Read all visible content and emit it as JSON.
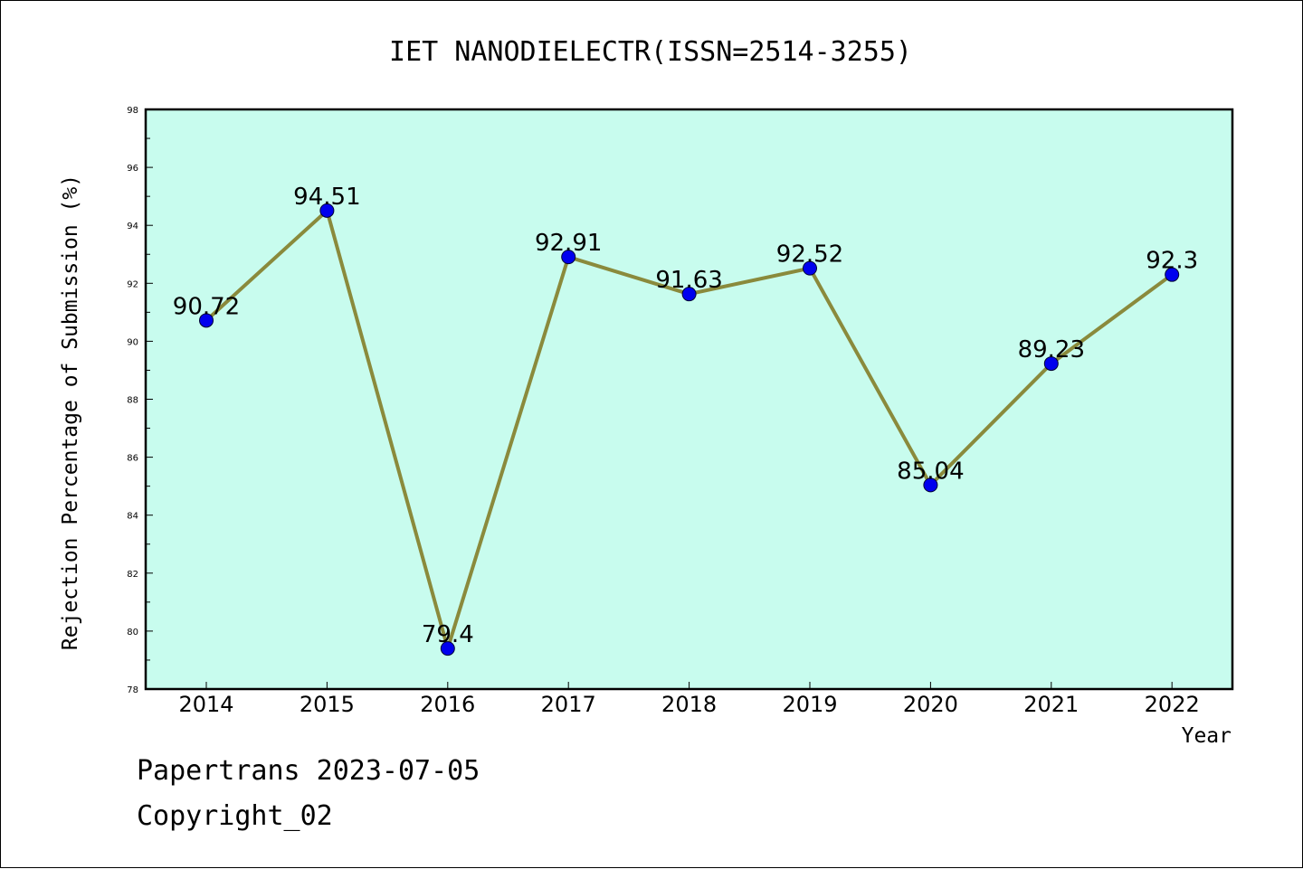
{
  "chart_data": {
    "type": "line",
    "title": "IET NANODIELECTR(ISSN=2514-3255)",
    "xlabel": "Year",
    "ylabel": "Rejection Percentage of Submission (%)",
    "categories": [
      "2014",
      "2015",
      "2016",
      "2017",
      "2018",
      "2019",
      "2020",
      "2021",
      "2022"
    ],
    "values": [
      90.72,
      94.51,
      79.4,
      92.91,
      91.63,
      92.52,
      85.04,
      89.23,
      92.3
    ],
    "data_labels": [
      "90.72",
      "94.51",
      "79.4",
      "92.91",
      "91.63",
      "92.52",
      "85.04",
      "89.23",
      "92.3"
    ],
    "ylim": [
      78,
      98
    ],
    "yticks": [
      "78",
      "80",
      "82",
      "84",
      "86",
      "88",
      "90",
      "92",
      "94",
      "96",
      "98"
    ],
    "grid": false,
    "colors": {
      "plot_background": "#c8fcee",
      "line": "#8a8a3c",
      "marker": "#0000ee"
    }
  },
  "footer": {
    "line1": "Papertrans 2023-07-05",
    "line2": "Copyright_02"
  }
}
